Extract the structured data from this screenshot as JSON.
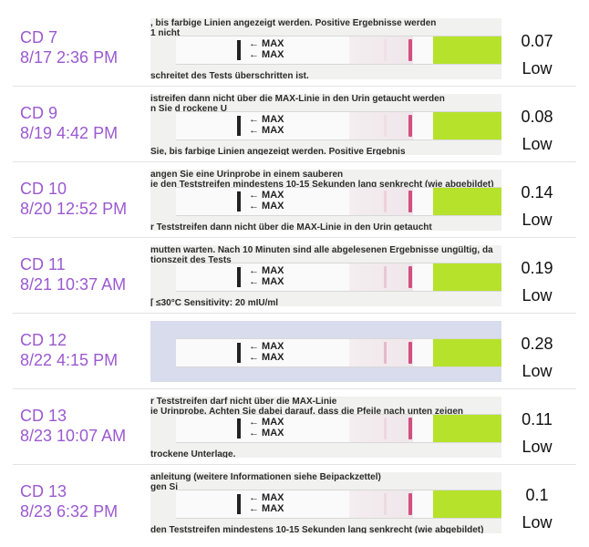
{
  "entries": [
    {
      "cycle_day": "CD 7",
      "datetime": "8/17 2:36 PM",
      "value": "0.07",
      "level": "Low",
      "test_line_opacity": 0.06,
      "print_top": ", bis farbige Linien angezeigt werden. Positive Ergebnisse werden",
      "print_side": "1 nicht",
      "print_bottom": "schreitet des Tests überschritten ist.",
      "max_labels": [
        "← MAX",
        "← MAX"
      ]
    },
    {
      "cycle_day": "CD 9",
      "datetime": "8/19 4:42 PM",
      "value": "0.08",
      "level": "Low",
      "test_line_opacity": 0.07,
      "print_top": "istreifen dann nicht über die MAX-Linie in den Urin getaucht werden",
      "print_side": "n Sie d  rockene U",
      "print_bottom": "Sie, bis farbige Linien angezeigt werden. Positive Ergebnis",
      "max_labels": [
        "← MAX",
        "← MAX"
      ]
    },
    {
      "cycle_day": "CD 10",
      "datetime": "8/20 12:52 PM",
      "value": "0.14",
      "level": "Low",
      "test_line_opacity": 0.15,
      "print_top": "angen Sie eine Urinprobe in einem sauberen",
      "print_side": "ie den Teststreifen mindestens 10-15 Sekunden lang senkrecht (wie abgebildet)",
      "print_bottom": "r Teststreifen dann nicht über die MAX-Linie in den Urin getaucht",
      "max_labels": [
        "← MAX",
        "← MAX"
      ]
    },
    {
      "cycle_day": "CD 11",
      "datetime": "8/21 10:37 AM",
      "value": "0.19",
      "level": "Low",
      "test_line_opacity": 0.22,
      "print_top": "mutten warten. Nach 10 Minuten sind alle abgelesenen Ergebnisse ungültig, da",
      "print_side": "tionszeit des Tests",
      "print_bottom": "[ ≤30°C  Sensitivity: 20 mIU/ml",
      "max_labels": [
        "← MAX",
        "← MAX"
      ]
    },
    {
      "cycle_day": "CD 12",
      "datetime": "8/22 4:15 PM",
      "value": "0.28",
      "level": "Low",
      "test_line_opacity": 0.32,
      "print_top": "",
      "print_side": "",
      "print_bottom": "",
      "max_labels": [
        "← MAX",
        "← MAX"
      ]
    },
    {
      "cycle_day": "CD 13",
      "datetime": "8/23 10:07 AM",
      "value": "0.11",
      "level": "Low",
      "test_line_opacity": 0.12,
      "print_top": "r Teststreifen darf nicht über die MAX-Linie",
      "print_side": "ie Urinprobe. Achten Sie dabei darauf, dass die Pfeile nach unten zeigen",
      "print_bottom": "trockene Unterlage.",
      "max_labels": [
        "← MAX",
        "← MAX"
      ]
    },
    {
      "cycle_day": "CD 13",
      "datetime": "8/23 6:32 PM",
      "value": "0.1",
      "level": "Low",
      "test_line_opacity": 0.1,
      "print_top": "anleitung (weitere Informationen siehe Beipackzettel)",
      "print_side": "gen Si",
      "print_bottom": "den Teststreifen mindestens 10-15 Sekunden lang senkrecht (wie abgebildet)",
      "max_labels": [
        "← MAX",
        "← MAX"
      ]
    }
  ],
  "colors": {
    "label": "#9b59d0",
    "value": "#111111",
    "control_line": "#cf4f82",
    "handle": "#b6e22c"
  }
}
